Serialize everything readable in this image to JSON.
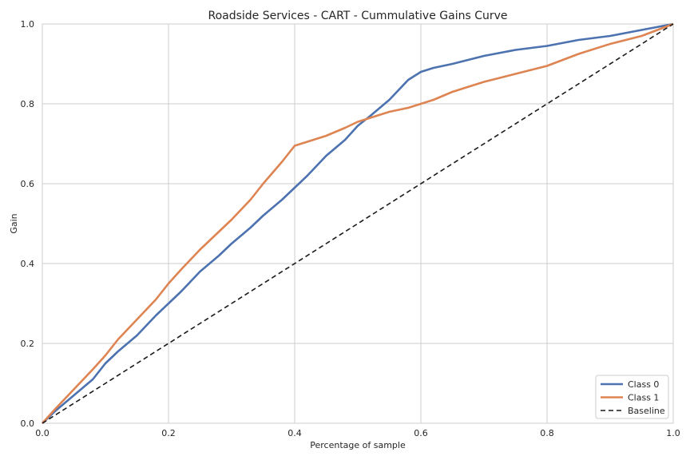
{
  "chart_data": {
    "type": "line",
    "title": "Roadside Services - CART - Cummulative Gains Curve",
    "xlabel": "Percentage of sample",
    "ylabel": "Gain",
    "xlim": [
      0,
      1
    ],
    "ylim": [
      0,
      1
    ],
    "xticks": [
      "0.0",
      "0.2",
      "0.4",
      "0.6",
      "0.8",
      "1.0"
    ],
    "yticks": [
      "0.0",
      "0.2",
      "0.4",
      "0.6",
      "0.8",
      "1.0"
    ],
    "grid": true,
    "legend_position": "bottom-right",
    "series": [
      {
        "name": "Class 0",
        "color": "#4c72b0",
        "style": "solid",
        "x": [
          0,
          0.02,
          0.05,
          0.08,
          0.1,
          0.12,
          0.15,
          0.18,
          0.2,
          0.22,
          0.25,
          0.28,
          0.3,
          0.33,
          0.35,
          0.38,
          0.4,
          0.42,
          0.45,
          0.48,
          0.5,
          0.52,
          0.55,
          0.58,
          0.6,
          0.62,
          0.65,
          0.7,
          0.75,
          0.8,
          0.85,
          0.9,
          0.95,
          1.0
        ],
        "y": [
          0,
          0.03,
          0.07,
          0.11,
          0.15,
          0.18,
          0.22,
          0.27,
          0.3,
          0.33,
          0.38,
          0.42,
          0.45,
          0.49,
          0.52,
          0.56,
          0.59,
          0.62,
          0.67,
          0.71,
          0.745,
          0.77,
          0.81,
          0.86,
          0.88,
          0.89,
          0.9,
          0.92,
          0.935,
          0.945,
          0.96,
          0.97,
          0.985,
          1.0
        ]
      },
      {
        "name": "Class 1",
        "color": "#dd8452",
        "style": "solid",
        "x": [
          0,
          0.02,
          0.05,
          0.08,
          0.1,
          0.12,
          0.15,
          0.18,
          0.2,
          0.22,
          0.25,
          0.28,
          0.3,
          0.33,
          0.35,
          0.38,
          0.4,
          0.42,
          0.45,
          0.48,
          0.5,
          0.52,
          0.55,
          0.58,
          0.6,
          0.62,
          0.65,
          0.7,
          0.75,
          0.8,
          0.85,
          0.9,
          0.95,
          1.0
        ],
        "y": [
          0,
          0.035,
          0.085,
          0.135,
          0.17,
          0.21,
          0.26,
          0.31,
          0.35,
          0.385,
          0.435,
          0.48,
          0.51,
          0.56,
          0.6,
          0.655,
          0.695,
          0.705,
          0.72,
          0.74,
          0.755,
          0.765,
          0.78,
          0.79,
          0.8,
          0.81,
          0.83,
          0.855,
          0.875,
          0.895,
          0.925,
          0.95,
          0.97,
          1.0
        ]
      },
      {
        "name": "Baseline",
        "color": "#1a1a1a",
        "style": "dashed",
        "x": [
          0,
          1
        ],
        "y": [
          0,
          1
        ]
      }
    ]
  }
}
